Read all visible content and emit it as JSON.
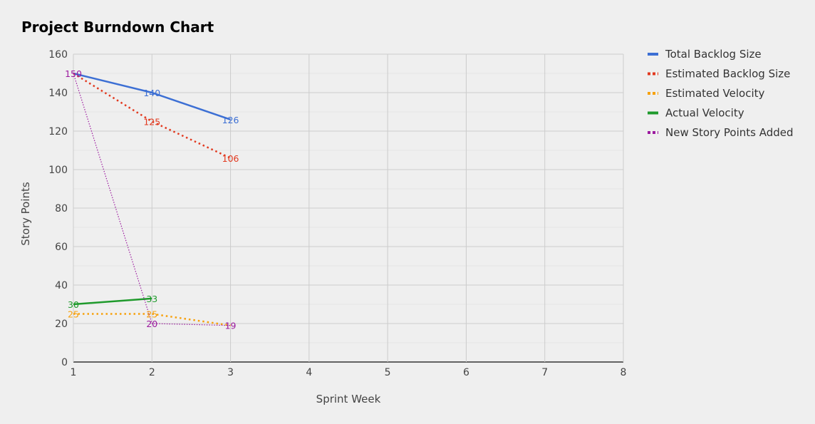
{
  "chart_data": {
    "type": "line",
    "title": "Project Burndown Chart",
    "xlabel": "Sprint Week",
    "ylabel": "Story Points",
    "xlim": [
      1,
      8
    ],
    "ylim": [
      0,
      160
    ],
    "x_ticks": [
      1,
      2,
      3,
      4,
      5,
      6,
      7,
      8
    ],
    "y_ticks": [
      0,
      20,
      40,
      60,
      80,
      100,
      120,
      140,
      160
    ],
    "grid": true,
    "legend_position": "right",
    "series": [
      {
        "name": "Total Backlog Size",
        "color": "#3c6fd4",
        "style": "solid",
        "x": [
          1,
          2,
          3
        ],
        "values": [
          150,
          140,
          126
        ]
      },
      {
        "name": "Estimated Backlog Size",
        "color": "#e2391f",
        "style": "dotted",
        "x": [
          1,
          2,
          3
        ],
        "values": [
          150,
          125,
          106
        ]
      },
      {
        "name": "Estimated Velocity",
        "color": "#f7a10d",
        "style": "dotted",
        "x": [
          1,
          2,
          3
        ],
        "values": [
          25,
          25,
          19
        ]
      },
      {
        "name": "Actual Velocity",
        "color": "#1f9a2c",
        "style": "solid",
        "x": [
          1,
          2
        ],
        "values": [
          30,
          33
        ]
      },
      {
        "name": "New Story Points Added",
        "color": "#9c1a9f",
        "style": "thin-dotted",
        "x": [
          1,
          2,
          3
        ],
        "values": [
          150,
          20,
          19
        ]
      }
    ],
    "data_labels": [
      {
        "series": 4,
        "x": 1,
        "y": 150,
        "text": "150"
      },
      {
        "series": 0,
        "x": 2,
        "y": 140,
        "text": "140"
      },
      {
        "series": 0,
        "x": 3,
        "y": 126,
        "text": "126"
      },
      {
        "series": 1,
        "x": 2,
        "y": 125,
        "text": "125"
      },
      {
        "series": 1,
        "x": 3,
        "y": 106,
        "text": "106"
      },
      {
        "series": 3,
        "x": 1,
        "y": 30,
        "text": "30"
      },
      {
        "series": 3,
        "x": 2,
        "y": 33,
        "text": "33"
      },
      {
        "series": 2,
        "x": 1,
        "y": 25,
        "text": "25"
      },
      {
        "series": 2,
        "x": 2,
        "y": 25,
        "text": "25"
      },
      {
        "series": 4,
        "x": 2,
        "y": 20,
        "text": "20"
      },
      {
        "series": 4,
        "x": 3,
        "y": 19,
        "text": "19"
      }
    ]
  }
}
